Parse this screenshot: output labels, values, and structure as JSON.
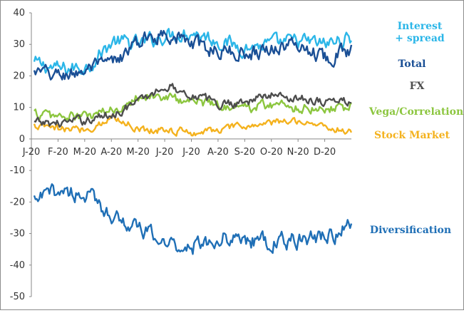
{
  "chart_data": {
    "type": "line",
    "title": "",
    "xlabel": "",
    "ylabel": "",
    "ylim": [
      -50,
      40
    ],
    "yticks": [
      "40",
      "30",
      "20",
      "10",
      "0",
      "-10",
      "-20",
      "-30",
      "-40",
      "-50"
    ],
    "xticks": [
      "J-20",
      "F-20",
      "M-20",
      "A-20",
      "M-20",
      "J-20",
      "J-20",
      "A-20",
      "S-20",
      "O-20",
      "N-20",
      "D-20"
    ],
    "x": [
      "Jan-20",
      "Feb-20",
      "Mar-20",
      "Apr-20",
      "May-20",
      "Jun-20",
      "Jul-20",
      "Aug-20",
      "Sep-20",
      "Oct-20",
      "Nov-20",
      "Dec-20",
      "Dec-20 end"
    ],
    "series": [
      {
        "name": "Interest + spread",
        "legend_lines": [
          "Interest",
          "+ spread"
        ],
        "color": "#2bb6e8",
        "values": [
          24,
          22,
          23,
          31,
          30,
          33,
          34,
          31,
          29,
          30,
          31,
          30,
          32
        ]
      },
      {
        "name": "Total",
        "legend_lines": [
          "Total"
        ],
        "color": "#1a4f95",
        "values": [
          21,
          20,
          22,
          24,
          31,
          34,
          30,
          28,
          27,
          29,
          30,
          26,
          28
        ]
      },
      {
        "name": "FX",
        "legend_lines": [
          "FX"
        ],
        "color": "#4d4d4d",
        "values": [
          5,
          5,
          6,
          8,
          12,
          17,
          14,
          11,
          12,
          14,
          13,
          12,
          12
        ]
      },
      {
        "name": "Vega/Correlation",
        "legend_lines": [
          "Vega/Correlation"
        ],
        "color": "#8cc63f",
        "values": [
          8,
          7,
          7,
          9,
          14,
          13,
          12,
          11,
          10,
          11,
          10,
          10,
          10
        ]
      },
      {
        "name": "Stock Market",
        "legend_lines": [
          "Stock Market"
        ],
        "color": "#f4b21e",
        "values": [
          4,
          3,
          3,
          7,
          3,
          3,
          2,
          3,
          4,
          5,
          6,
          4,
          2
        ]
      },
      {
        "name": "Diversification",
        "legend_lines": [
          "Diversification"
        ],
        "color": "#1f6fb6",
        "values": [
          -20,
          -16,
          -18,
          -24,
          -29,
          -33,
          -34,
          -31,
          -32,
          -33,
          -32,
          -31,
          -28
        ]
      }
    ]
  }
}
